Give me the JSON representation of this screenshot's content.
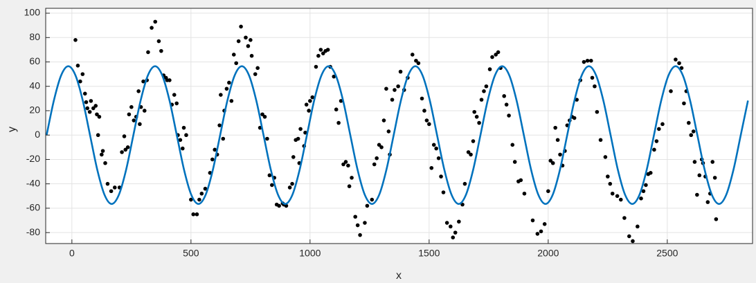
{
  "chart_data": {
    "type": "scatter",
    "xlabel": "x",
    "ylabel": "y",
    "xlim": [
      -110,
      2858
    ],
    "ylim": [
      -89,
      104
    ],
    "xticks": [
      0,
      500,
      1000,
      1500,
      2000,
      2500
    ],
    "yticks": [
      -80,
      -60,
      -40,
      -20,
      0,
      20,
      40,
      60,
      80,
      100
    ],
    "grid": true,
    "series": [
      {
        "type": "scatter",
        "color": "#000000",
        "x": [
          15,
          25,
          35,
          45,
          55,
          60,
          65,
          75,
          80,
          90,
          100,
          105,
          110,
          115,
          125,
          130,
          140,
          150,
          165,
          180,
          200,
          210,
          220,
          225,
          235,
          240,
          250,
          260,
          270,
          280,
          285,
          290,
          300,
          305,
          315,
          320,
          335,
          350,
          365,
          375,
          385,
          395,
          400,
          410,
          420,
          430,
          440,
          445,
          455,
          465,
          470,
          480,
          500,
          510,
          525,
          535,
          545,
          560,
          580,
          590,
          600,
          610,
          620,
          625,
          635,
          640,
          650,
          660,
          670,
          680,
          690,
          700,
          710,
          730,
          740,
          750,
          755,
          770,
          780,
          790,
          800,
          810,
          820,
          830,
          840,
          850,
          860,
          870,
          885,
          890,
          900,
          915,
          925,
          930,
          940,
          950,
          955,
          960,
          975,
          980,
          985,
          995,
          1000,
          1010,
          1025,
          1035,
          1045,
          1055,
          1065,
          1075,
          1085,
          1100,
          1110,
          1120,
          1130,
          1140,
          1150,
          1160,
          1165,
          1175,
          1190,
          1200,
          1210,
          1230,
          1240,
          1260,
          1270,
          1280,
          1290,
          1300,
          1310,
          1320,
          1330,
          1335,
          1345,
          1355,
          1370,
          1380,
          1395,
          1410,
          1430,
          1445,
          1455,
          1470,
          1480,
          1490,
          1500,
          1510,
          1520,
          1530,
          1540,
          1550,
          1560,
          1575,
          1590,
          1600,
          1610,
          1625,
          1640,
          1650,
          1665,
          1675,
          1685,
          1690,
          1700,
          1710,
          1720,
          1730,
          1740,
          1755,
          1765,
          1780,
          1790,
          1800,
          1815,
          1825,
          1835,
          1850,
          1860,
          1875,
          1885,
          1900,
          1935,
          1955,
          1970,
          1985,
          2000,
          2010,
          2020,
          2030,
          2040,
          2050,
          2060,
          2070,
          2080,
          2090,
          2100,
          2110,
          2120,
          2135,
          2150,
          2165,
          2180,
          2185,
          2195,
          2205,
          2220,
          2240,
          2250,
          2260,
          2270,
          2290,
          2305,
          2320,
          2340,
          2355,
          2375,
          2390,
          2400,
          2410,
          2420,
          2430,
          2445,
          2455,
          2465,
          2480,
          2515,
          2535,
          2550,
          2560,
          2570,
          2580,
          2590,
          2600,
          2610,
          2615,
          2625,
          2635,
          2645,
          2650,
          2660,
          2670,
          2680,
          2690,
          2700,
          2705
        ],
        "values": [
          78,
          57,
          44,
          50,
          34,
          27,
          22,
          19,
          28,
          22,
          24,
          17,
          0,
          15,
          -16,
          -13,
          -23,
          -40,
          -46,
          -43,
          -43,
          -14,
          -1,
          -12,
          -10,
          17,
          23,
          12,
          15,
          36,
          9,
          23,
          44,
          20,
          45,
          68,
          88,
          93,
          77,
          69,
          49,
          47,
          45,
          45,
          25,
          33,
          26,
          0,
          -4,
          -11,
          6,
          0,
          -53,
          -65,
          -65,
          -53,
          -48,
          -44,
          -31,
          -20,
          -12,
          -16,
          8,
          33,
          -3,
          20,
          38,
          43,
          28,
          66,
          59,
          77,
          89,
          80,
          73,
          78,
          65,
          50,
          55,
          6,
          17,
          15,
          -3,
          -33,
          -41,
          -35,
          -57,
          -58,
          -56,
          -57,
          -58,
          -43,
          -40,
          -18,
          -4,
          -3,
          -23,
          5,
          -9,
          2,
          25,
          20,
          28,
          31,
          56,
          65,
          70,
          67,
          69,
          70,
          56,
          48,
          21,
          10,
          28,
          -24,
          -22,
          -25,
          -42,
          -35,
          -67,
          -74,
          -82,
          -72,
          -58,
          -53,
          -24,
          -19,
          -8,
          -10,
          12,
          38,
          3,
          -16,
          29,
          37,
          40,
          52,
          37,
          47,
          66,
          61,
          59,
          30,
          20,
          12,
          9,
          -27,
          -8,
          -11,
          -19,
          -34,
          -47,
          -72,
          -75,
          -84,
          -80,
          -71,
          -57,
          -40,
          -14,
          -16,
          -5,
          19,
          15,
          10,
          29,
          36,
          40,
          54,
          64,
          66,
          68,
          55,
          32,
          25,
          16,
          -8,
          -22,
          -38,
          -37,
          -48,
          -70,
          -81,
          -79,
          -73,
          -46,
          -21,
          -23,
          6,
          -4,
          -16,
          -25,
          -13,
          8,
          12,
          15,
          14,
          29,
          45,
          60,
          61,
          61,
          47,
          40,
          19,
          -4,
          -18,
          -34,
          -40,
          -48,
          -50,
          -53,
          -68,
          -83,
          -87,
          -75,
          -52,
          -46,
          -41,
          -32,
          -31,
          -12,
          -5,
          5,
          9,
          36,
          62,
          59,
          55,
          26,
          36,
          10,
          0,
          3,
          -22,
          -49,
          -33,
          -20,
          -23,
          -34,
          -55,
          -48,
          -22,
          -35,
          -69
        ]
      },
      {
        "type": "line",
        "color": "#0072bd",
        "x": [
          -106.1,
          -75.7,
          -45.4,
          -15.0,
          15.3,
          45.7,
          76.1,
          106.4,
          136.8,
          167.1,
          197.5,
          227.9,
          258.2,
          288.6,
          318.9,
          349.3,
          379.7,
          410.0,
          440.4,
          470.7,
          501.1,
          531.5,
          561.8,
          592.2,
          622.5,
          652.9,
          683.3,
          713.6,
          744.0,
          774.3,
          804.7,
          835.1,
          865.4,
          895.8,
          926.1,
          956.5,
          986.9,
          1017.2,
          1047.6,
          1077.9,
          1108.3,
          1138.7,
          1169.0,
          1199.4,
          1229.7,
          1260.1,
          1290.5,
          1320.8,
          1351.2,
          1381.5,
          1411.9,
          1442.3,
          1472.6,
          1503.0,
          1533.3,
          1563.7,
          1594.1,
          1624.4,
          1654.8,
          1685.1,
          1715.5,
          1745.9,
          1776.2,
          1806.6,
          1836.9,
          1867.3,
          1897.7,
          1928.0,
          1958.4,
          1988.7,
          2019.1,
          2049.5,
          2079.8,
          2110.2,
          2140.5,
          2170.9,
          2201.3,
          2231.6,
          2262.0,
          2292.3,
          2322.7,
          2353.1,
          2383.4,
          2413.8,
          2444.1,
          2474.5,
          2504.9,
          2535.2,
          2565.6,
          2595.9,
          2626.3,
          2656.7,
          2687.0,
          2717.4,
          2747.7,
          2778.1,
          2808.5,
          2838.8
        ],
        "values": [
          0,
          28.3,
          48.9,
          56.5,
          48.9,
          28.3,
          0,
          -28.3,
          -48.9,
          -56.5,
          -48.9,
          -28.3,
          0,
          28.3,
          48.9,
          56.5,
          48.9,
          28.3,
          0,
          -28.3,
          -48.9,
          -56.5,
          -48.9,
          -28.3,
          0,
          28.3,
          48.9,
          56.5,
          48.9,
          28.3,
          0,
          -28.3,
          -48.9,
          -56.5,
          -48.9,
          -28.3,
          0,
          28.3,
          48.9,
          56.5,
          48.9,
          28.3,
          0,
          -28.3,
          -48.9,
          -56.5,
          -48.9,
          -28.3,
          0,
          28.3,
          48.9,
          56.5,
          48.9,
          28.3,
          0,
          -28.3,
          -48.9,
          -56.5,
          -48.9,
          -28.3,
          0,
          28.3,
          48.9,
          56.5,
          48.9,
          28.3,
          0,
          -28.3,
          -48.9,
          -56.5,
          -48.9,
          -28.3,
          0,
          28.3,
          48.9,
          56.5,
          48.9,
          28.3,
          0,
          -28.3,
          -48.9,
          -56.5,
          -48.9,
          -28.3,
          0,
          28.3,
          48.9,
          56.5,
          48.9,
          28.3,
          0,
          -28.3,
          -48.9,
          -56.5,
          -48.9,
          -28.3,
          0,
          28.3
        ]
      }
    ]
  }
}
